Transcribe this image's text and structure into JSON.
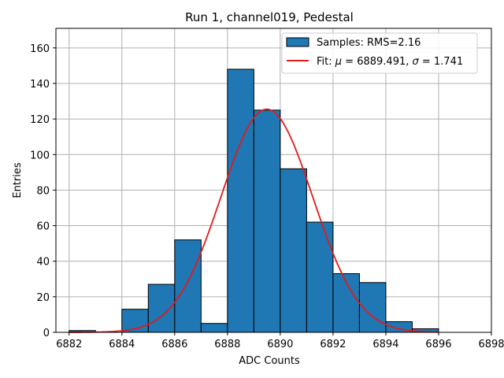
{
  "chart_data": {
    "type": "bar",
    "title": "Run 1, channel019, Pedestal",
    "xlabel": "ADC Counts",
    "ylabel": "Entries",
    "xlim": [
      6881.5,
      6898.0
    ],
    "ylim": [
      0,
      171
    ],
    "xticks": [
      6882,
      6884,
      6886,
      6888,
      6890,
      6892,
      6894,
      6896,
      6898
    ],
    "yticks": [
      0,
      20,
      40,
      60,
      80,
      100,
      120,
      140,
      160
    ],
    "grid": true,
    "legend_position": "top-right",
    "histogram": {
      "name": "Samples: RMS=2.16",
      "color": "#1f77b4",
      "edge_color": "#000000",
      "bins": [
        {
          "x0": 6882,
          "x1": 6883,
          "count": 1
        },
        {
          "x0": 6883,
          "x1": 6884,
          "count": 0
        },
        {
          "x0": 6884,
          "x1": 6885,
          "count": 13
        },
        {
          "x0": 6885,
          "x1": 6886,
          "count": 27
        },
        {
          "x0": 6886,
          "x1": 6887,
          "count": 52
        },
        {
          "x0": 6887,
          "x1": 6888,
          "count": 5
        },
        {
          "x0": 6888,
          "x1": 6889,
          "count": 148
        },
        {
          "x0": 6889,
          "x1": 6890,
          "count": 125
        },
        {
          "x0": 6890,
          "x1": 6891,
          "count": 92
        },
        {
          "x0": 6891,
          "x1": 6892,
          "count": 62
        },
        {
          "x0": 6892,
          "x1": 6893,
          "count": 33
        },
        {
          "x0": 6893,
          "x1": 6894,
          "count": 28
        },
        {
          "x0": 6894,
          "x1": 6895,
          "count": 6
        },
        {
          "x0": 6895,
          "x1": 6896,
          "count": 2
        }
      ]
    },
    "fit": {
      "label_prefix": "Fit: ",
      "label_mu": "μ",
      "label_mu_value": " = 6889.491, ",
      "label_sigma": "σ",
      "label_sigma_value": " = 1.741",
      "color": "#e31a1c",
      "mu": 6889.491,
      "sigma": 1.741,
      "amplitude": 125.5,
      "x_range": [
        6882,
        6896
      ]
    }
  }
}
